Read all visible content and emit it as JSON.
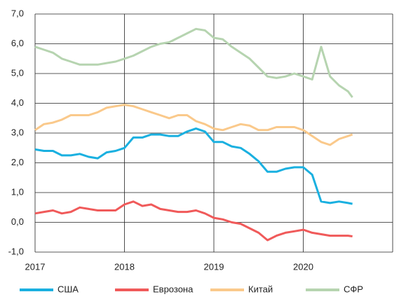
{
  "chart_data": {
    "type": "line",
    "x": [
      2017.0,
      2017.1,
      2017.2,
      2017.3,
      2017.4,
      2017.5,
      2017.6,
      2017.7,
      2017.8,
      2017.9,
      2018.0,
      2018.1,
      2018.2,
      2018.3,
      2018.4,
      2018.5,
      2018.6,
      2018.7,
      2018.8,
      2018.9,
      2019.0,
      2019.1,
      2019.2,
      2019.3,
      2019.4,
      2019.5,
      2019.6,
      2019.7,
      2019.8,
      2019.9,
      2020.0,
      2020.1,
      2020.2,
      2020.3,
      2020.4,
      2020.5,
      2020.55
    ],
    "series": [
      {
        "name": "США",
        "color": "#1ab0e0",
        "values": [
          2.45,
          2.4,
          2.4,
          2.25,
          2.25,
          2.3,
          2.2,
          2.15,
          2.35,
          2.4,
          2.5,
          2.85,
          2.85,
          2.95,
          2.95,
          2.9,
          2.9,
          3.05,
          3.15,
          3.05,
          2.7,
          2.7,
          2.55,
          2.5,
          2.3,
          2.05,
          1.7,
          1.7,
          1.8,
          1.85,
          1.85,
          1.6,
          0.7,
          0.65,
          0.7,
          0.65,
          0.62
        ]
      },
      {
        "name": "Еврозона",
        "color": "#f05a5a",
        "values": [
          0.3,
          0.35,
          0.4,
          0.3,
          0.35,
          0.5,
          0.45,
          0.4,
          0.4,
          0.4,
          0.6,
          0.7,
          0.55,
          0.6,
          0.45,
          0.4,
          0.35,
          0.35,
          0.4,
          0.3,
          0.15,
          0.1,
          0.0,
          -0.05,
          -0.2,
          -0.35,
          -0.6,
          -0.45,
          -0.35,
          -0.3,
          -0.25,
          -0.35,
          -0.4,
          -0.45,
          -0.45,
          -0.45,
          -0.47
        ]
      },
      {
        "name": "Китай",
        "color": "#fac98b",
        "values": [
          3.1,
          3.3,
          3.35,
          3.45,
          3.6,
          3.6,
          3.6,
          3.7,
          3.85,
          3.9,
          3.95,
          3.9,
          3.8,
          3.7,
          3.6,
          3.5,
          3.6,
          3.6,
          3.4,
          3.3,
          3.15,
          3.1,
          3.2,
          3.3,
          3.25,
          3.1,
          3.1,
          3.2,
          3.2,
          3.2,
          3.1,
          2.9,
          2.7,
          2.6,
          2.8,
          2.9,
          2.95
        ]
      },
      {
        "name": "СФР",
        "color": "#b6d4b0",
        "values": [
          5.9,
          5.8,
          5.7,
          5.5,
          5.4,
          5.3,
          5.3,
          5.3,
          5.35,
          5.4,
          5.5,
          5.6,
          5.75,
          5.9,
          6.0,
          6.05,
          6.2,
          6.35,
          6.5,
          6.45,
          6.2,
          6.15,
          5.9,
          5.7,
          5.5,
          5.2,
          4.9,
          4.85,
          4.9,
          5.0,
          4.9,
          4.8,
          5.9,
          4.9,
          4.6,
          4.4,
          4.2
        ]
      }
    ],
    "xlim": [
      2017,
      2021
    ],
    "xticks": [
      2017,
      2018,
      2019,
      2020
    ],
    "ylim": [
      -1,
      7
    ],
    "yticks": [
      {
        "value": -1,
        "label": "-1,0"
      },
      {
        "value": 0,
        "label": "0,0"
      },
      {
        "value": 1,
        "label": "1,0"
      },
      {
        "value": 2,
        "label": "2,0"
      },
      {
        "value": 3,
        "label": "3,0"
      },
      {
        "value": 4,
        "label": "4,0"
      },
      {
        "value": 5,
        "label": "5,0"
      },
      {
        "value": 6,
        "label": "6,0"
      },
      {
        "value": 7,
        "label": "7,0"
      }
    ],
    "grid": true,
    "legend": "bottom"
  }
}
